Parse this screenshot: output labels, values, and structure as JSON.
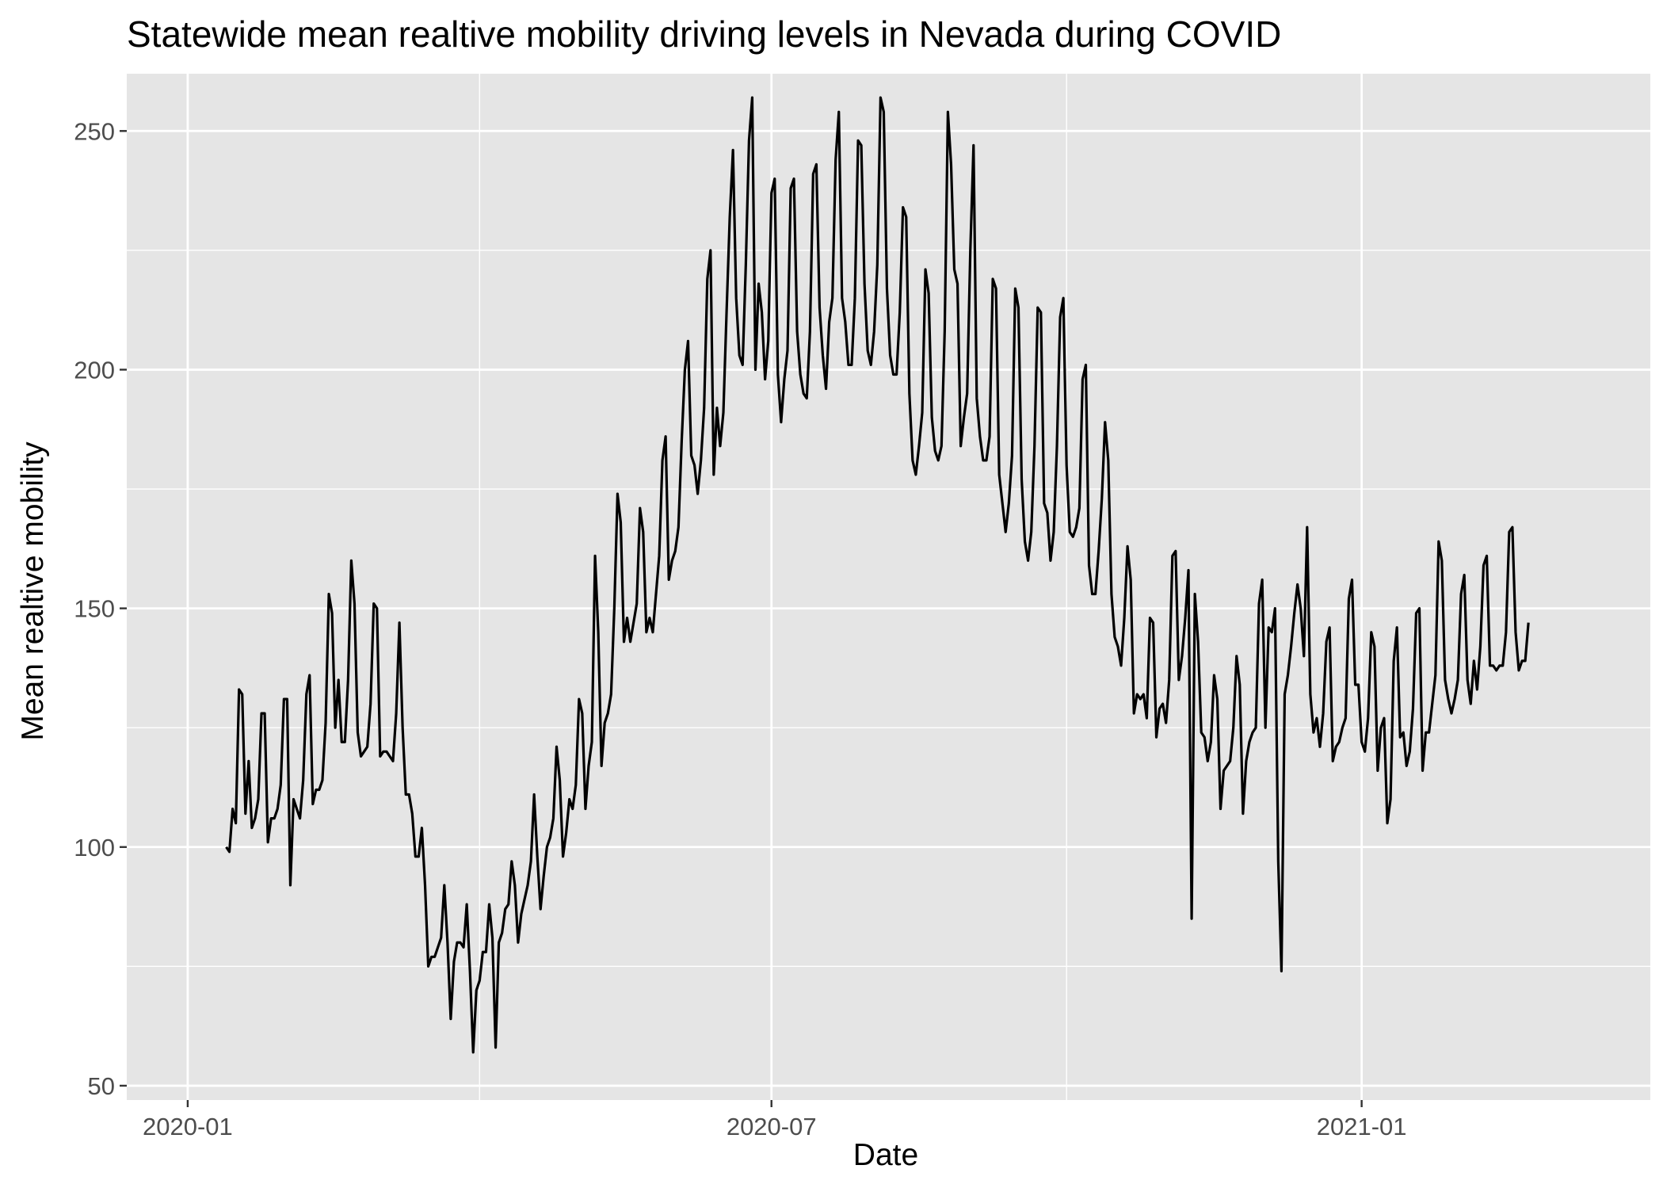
{
  "chart_data": {
    "type": "line",
    "title": "Statewide mean realtive mobility driving levels in Nevada during COVID",
    "xlabel": "Date",
    "ylabel": "Mean realtive mobility",
    "x_tick_labels": [
      "2020-01",
      "2020-07",
      "2021-01"
    ],
    "x_ticks": [
      "2020-01-01",
      "2020-07-01",
      "2021-01-01"
    ],
    "x_minor_ticks": [
      "2020-04-01",
      "2020-10-01"
    ],
    "y_tick_labels": [
      "50",
      "100",
      "150",
      "200",
      "250"
    ],
    "y_ticks": [
      50,
      100,
      150,
      200,
      250
    ],
    "y_minor_ticks": [
      75,
      125,
      175,
      225
    ],
    "xlim": [
      "2019-12-13",
      "2021-04-01"
    ],
    "ylim": [
      47,
      262
    ],
    "grid": true,
    "legend": "none",
    "colors": {
      "panel": "#e5e5e5",
      "grid": "#ffffff",
      "line": "#000000",
      "tick_text": "#4d4d4d",
      "tick_mark": "#333333"
    },
    "series": [
      {
        "start_date": "2020-01-13",
        "values": [
          100,
          99,
          108,
          105,
          133,
          132,
          107,
          118,
          104,
          106,
          110,
          128,
          128,
          101,
          106,
          106,
          108,
          113,
          131,
          131,
          92,
          110,
          108,
          106,
          114,
          132,
          136,
          109,
          112,
          112,
          114,
          126,
          153,
          149,
          125,
          135,
          122,
          122,
          135,
          160,
          151,
          124,
          119,
          120,
          121,
          130,
          151,
          150,
          119,
          120,
          120,
          119,
          118,
          128,
          147,
          125,
          111,
          111,
          107,
          98,
          98,
          104,
          92,
          75,
          77,
          77,
          79,
          81,
          92,
          80,
          64,
          76,
          80,
          80,
          79,
          88,
          74,
          57,
          70,
          72,
          78,
          78,
          88,
          81,
          58,
          80,
          82,
          87,
          88,
          97,
          92,
          80,
          86,
          89,
          92,
          97,
          111,
          98,
          87,
          94,
          100,
          102,
          106,
          121,
          114,
          98,
          103,
          110,
          108,
          113,
          131,
          128,
          108,
          117,
          122,
          161,
          145,
          117,
          126,
          128,
          132,
          150,
          174,
          168,
          143,
          148,
          143,
          147,
          151,
          171,
          166,
          145,
          148,
          145,
          153,
          161,
          181,
          186,
          156,
          160,
          162,
          167,
          185,
          200,
          206,
          182,
          180,
          174,
          181,
          192,
          219,
          225,
          178,
          192,
          184,
          191,
          212,
          232,
          246,
          215,
          203,
          201,
          222,
          248,
          257,
          200,
          218,
          212,
          198,
          206,
          237,
          240,
          199,
          189,
          198,
          204,
          238,
          240,
          208,
          199,
          195,
          194,
          208,
          241,
          243,
          213,
          203,
          196,
          210,
          215,
          244,
          254,
          215,
          210,
          201,
          201,
          215,
          248,
          247,
          218,
          204,
          201,
          208,
          222,
          257,
          254,
          217,
          203,
          199,
          199,
          212,
          234,
          232,
          195,
          181,
          178,
          184,
          191,
          221,
          216,
          190,
          183,
          181,
          184,
          208,
          254,
          243,
          221,
          218,
          184,
          190,
          195,
          225,
          247,
          194,
          186,
          181,
          181,
          186,
          219,
          217,
          178,
          172,
          166,
          172,
          182,
          217,
          213,
          177,
          164,
          160,
          166,
          184,
          213,
          212,
          172,
          170,
          160,
          166,
          184,
          211,
          215,
          180,
          166,
          165,
          167,
          171,
          198,
          201,
          159,
          153,
          153,
          162,
          173,
          189,
          181,
          153,
          144,
          142,
          138,
          148,
          163,
          156,
          128,
          132,
          131,
          132,
          127,
          148,
          147,
          123,
          129,
          130,
          126,
          135,
          161,
          162,
          135,
          140,
          148,
          158,
          85,
          153,
          143,
          124,
          123,
          118,
          122,
          136,
          131,
          108,
          116,
          117,
          118,
          125,
          140,
          134,
          107,
          118,
          122,
          124,
          125,
          151,
          156,
          125,
          146,
          145,
          150,
          97,
          74,
          132,
          136,
          142,
          149,
          155,
          150,
          140,
          167,
          132,
          124,
          127,
          121,
          128,
          143,
          146,
          118,
          121,
          122,
          125,
          127,
          152,
          156,
          134,
          134,
          122,
          120,
          127,
          145,
          142,
          116,
          125,
          127,
          105,
          110,
          139,
          146,
          123,
          124,
          117,
          120,
          129,
          149,
          150,
          116,
          124,
          124,
          130,
          136,
          164,
          160,
          135,
          131,
          128,
          131,
          135,
          153,
          157,
          135,
          130,
          139,
          133,
          142,
          159,
          161,
          138,
          138,
          137,
          138,
          138,
          145,
          166,
          167,
          145,
          137,
          139,
          139,
          147
        ]
      }
    ]
  }
}
